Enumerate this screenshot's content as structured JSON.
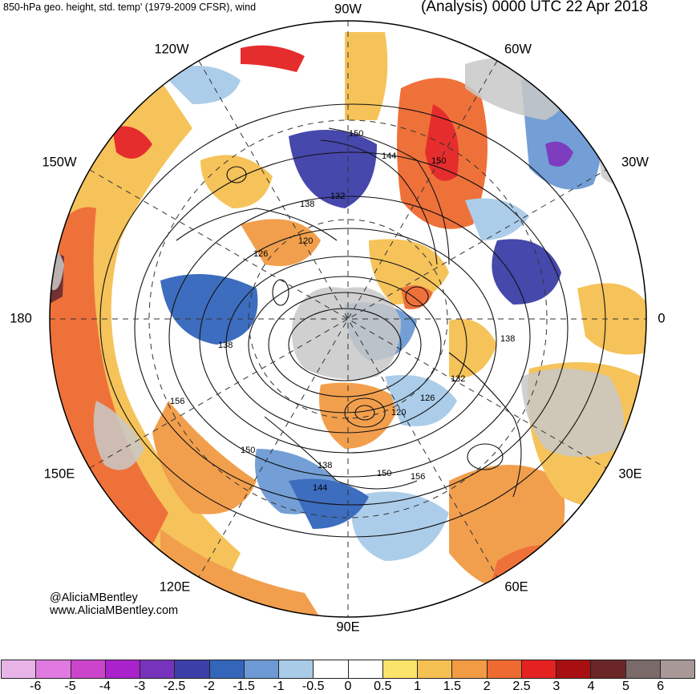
{
  "header": {
    "title_left": "850-hPa geo. height, std. temp' (1979-2009 CFSR), wind",
    "title_right": "(Analysis) 0000 UTC 22 Apr 2018"
  },
  "longitude_labels": {
    "lon_90w": "90W",
    "lon_120w": "120W",
    "lon_60w": "60W",
    "lon_150w": "150W",
    "lon_30w": "30W",
    "lon_180": "180",
    "lon_0": "0",
    "lon_150e": "150E",
    "lon_30e": "30E",
    "lon_120e": "120E",
    "lon_60e": "60E",
    "lon_90e": "90E"
  },
  "contour_labels": [
    "150",
    "144",
    "138",
    "132",
    "150",
    "120",
    "126",
    "138",
    "156",
    "150",
    "120",
    "126",
    "132",
    "138",
    "138",
    "144",
    "150",
    "156"
  ],
  "credit": {
    "handle": "@AliciaMBentley",
    "website": "www.AliciaMBentley.com"
  },
  "colorbar": {
    "colors": [
      "#e8b4e8",
      "#e07ae0",
      "#cc44cc",
      "#aa22cc",
      "#7733bb",
      "#3d3fa8",
      "#3366bb",
      "#6d9ad4",
      "#a8cbe8",
      "#ffffff",
      "#ffffff",
      "#fbe46a",
      "#f5c052",
      "#f29a44",
      "#ef6a30",
      "#e52222",
      "#a80f12",
      "#6b2727",
      "#7a6a6a",
      "#a89898"
    ],
    "ticks": [
      "-6",
      "-5",
      "-4",
      "-3",
      "-2.5",
      "-2",
      "-1.5",
      "-1",
      "-0.5",
      "0",
      "0.5",
      "1",
      "1.5",
      "2",
      "2.5",
      "3",
      "4",
      "5",
      "6"
    ]
  },
  "colors": {
    "land": "#c8c8c8",
    "warm": "#f29a44",
    "cold": "#3d3fa8"
  }
}
